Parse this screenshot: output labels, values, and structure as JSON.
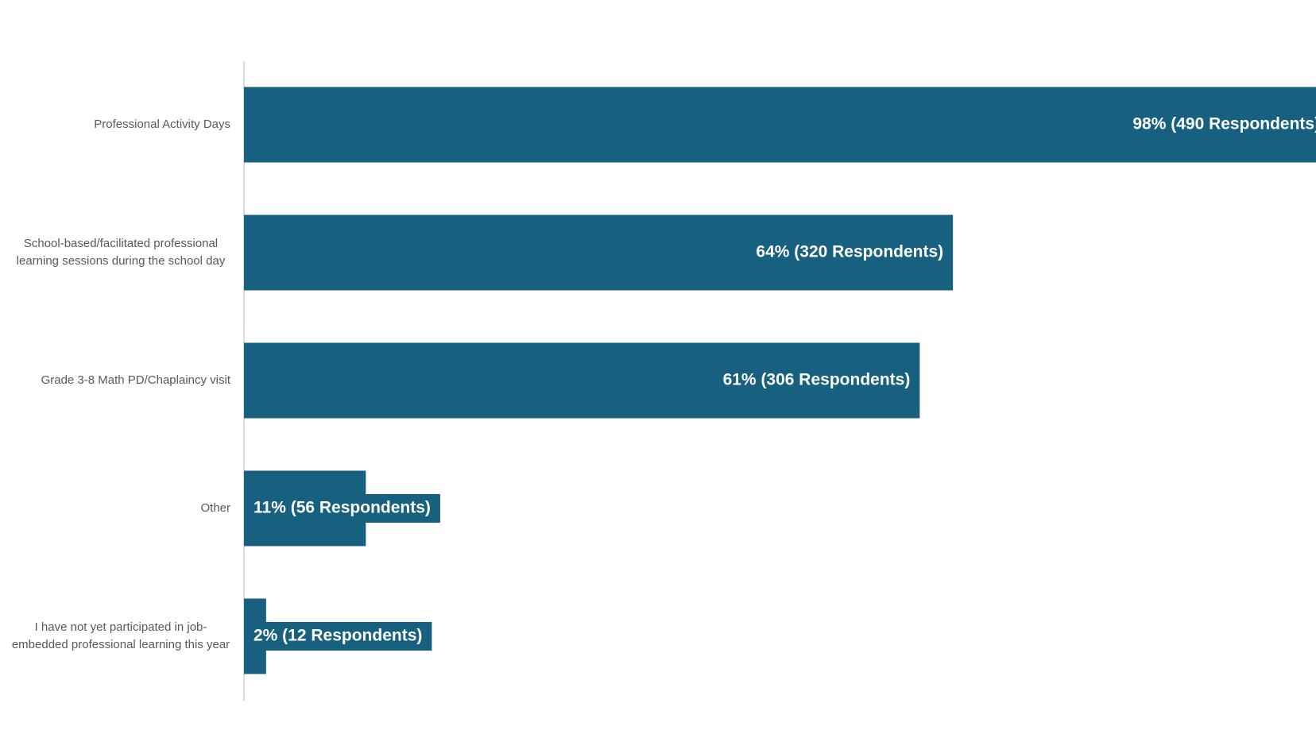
{
  "chart_data": {
    "type": "bar",
    "orientation": "horizontal",
    "color": "#17607f",
    "categories": [
      "Professional Activity Days",
      "School-based/facilitated professional learning sessions during the school day",
      "Grade 3-8 Math PD/Chaplaincy visit",
      "Other",
      "I have not yet participated in job-embedded professional learning this year"
    ],
    "values": [
      98,
      64,
      61,
      11,
      2
    ],
    "value_labels": [
      "98% (490 Respondents)",
      "64% (320 Respondents)",
      "61% (306 Respondents)",
      "11% (56 Respondents)",
      "2% (12 Respondents)"
    ]
  }
}
